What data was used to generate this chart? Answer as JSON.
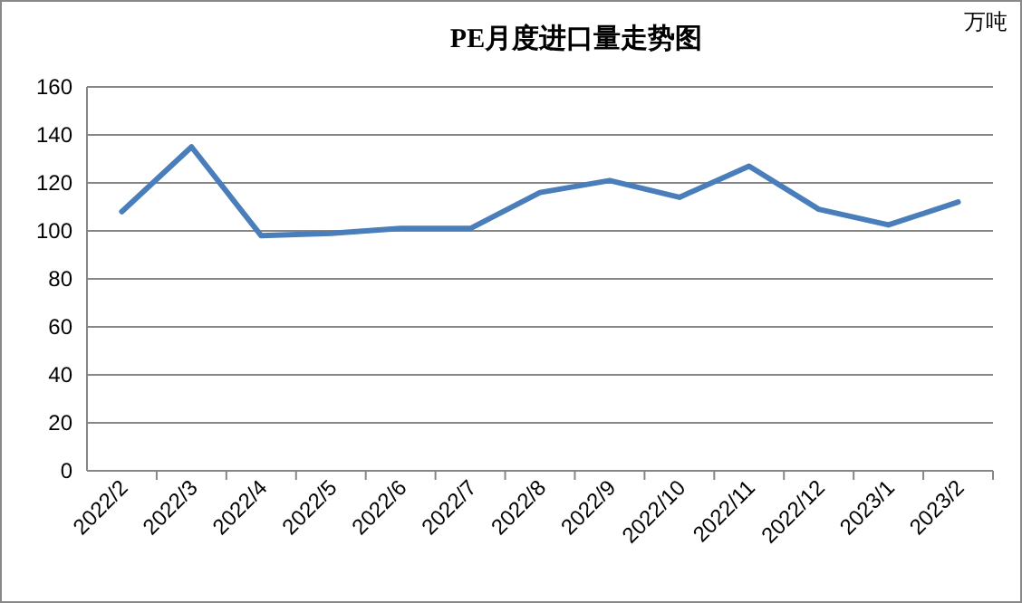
{
  "chart_data": {
    "type": "line",
    "title": "PE月度进口量走势图",
    "ylabel": "万吨",
    "categories": [
      "2022/2",
      "2022/3",
      "2022/4",
      "2022/5",
      "2022/6",
      "2022/7",
      "2022/8",
      "2022/9",
      "2022/10",
      "2022/11",
      "2022/12",
      "2023/1",
      "2023/2"
    ],
    "series": [
      {
        "color": "#4a7ebb",
        "values": [
          108,
          135,
          98,
          99,
          101,
          101,
          116,
          121,
          114,
          127,
          109,
          102.5,
          112
        ]
      }
    ],
    "ylim": [
      0,
      160
    ],
    "yticks": [
      0,
      20,
      40,
      60,
      80,
      100,
      120,
      140,
      160
    ],
    "grid": "y",
    "marker": "none",
    "line_style": "solid"
  }
}
